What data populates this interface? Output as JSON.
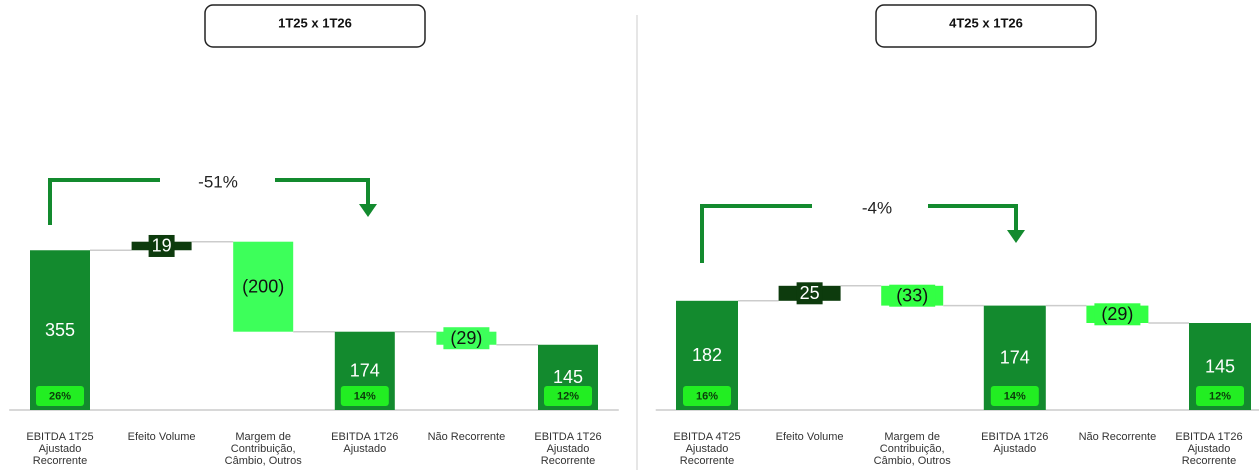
{
  "chart_data": [
    {
      "type": "waterfall",
      "title": "1T25 x 1T26",
      "categories": [
        "EBITDA 1T25\nAjustado\nRecorrente",
        "Efeito Volume",
        "Margem de\nContribuição,\nCâmbio, Outros",
        "EBITDA 1T26\nAjustado",
        "Não Recorrente",
        "EBITDA 1T26\nAjustado\nRecorrente"
      ],
      "measure": [
        "total",
        "relative",
        "relative",
        "total",
        "relative",
        "total"
      ],
      "values": [
        355,
        19,
        -200,
        174,
        -29,
        145
      ],
      "value_labels": [
        "355",
        "19",
        "(200)",
        "174",
        "(29)",
        "145"
      ],
      "margins": [
        "26%",
        null,
        null,
        "14%",
        null,
        "12%"
      ],
      "annotation": "-51%",
      "colors": {
        "total": "#138a2e",
        "increase": "#0d3b0d",
        "decrease": "#3dff5a",
        "badge": "#22ee22"
      }
    },
    {
      "type": "waterfall",
      "title": "4T25 x 1T26",
      "categories": [
        "EBITDA 4T25\nAjustado\nRecorrente",
        "Efeito Volume",
        "Margem de\nContribuição,\nCâmbio, Outros",
        "EBITDA 1T26\nAjustado",
        "Não Recorrente",
        "EBITDA 1T26\nAjustado\nRecorrente"
      ],
      "measure": [
        "total",
        "relative",
        "relative",
        "total",
        "relative",
        "total"
      ],
      "values": [
        182,
        25,
        -33,
        174,
        -29,
        145
      ],
      "value_labels": [
        "182",
        "25",
        "(33)",
        "174",
        "(29)",
        "145"
      ],
      "margins": [
        "16%",
        null,
        null,
        "14%",
        null,
        "12%"
      ],
      "annotation": "-4%",
      "colors": {
        "total": "#138a2e",
        "increase": "#0d3b0d",
        "decrease": "#33ff44",
        "badge": "#22ee22"
      }
    }
  ]
}
